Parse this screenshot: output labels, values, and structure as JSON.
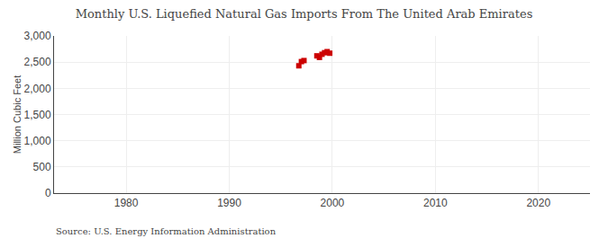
{
  "chart_data": {
    "type": "scatter",
    "title": "Monthly U.S. Liquefied Natural Gas Imports From The United Arab Emirates",
    "y_label": "Million Cubic Feet",
    "annotations": [
      "Source: U.S. Energy Information Administration"
    ],
    "x": [
      1996.75,
      1997.0,
      1997.25,
      1998.5,
      1998.75,
      1999.0,
      1999.25,
      1999.5,
      1999.75
    ],
    "values": [
      2430,
      2510,
      2530,
      2620,
      2590,
      2650,
      2680,
      2700,
      2670
    ],
    "color": "#cc0000",
    "marker": "square",
    "xlim": [
      1973,
      2025
    ],
    "xticks": [
      1980,
      1990,
      2000,
      2010,
      2020
    ],
    "ylim": [
      0,
      3000
    ],
    "yticks": [
      0,
      500,
      {
        "value": 1000,
        "label": "1,000"
      },
      {
        "value": 1500,
        "label": "1,500"
      },
      {
        "value": 2000,
        "label": "2,000"
      },
      {
        "value": 2500,
        "label": "2,500"
      },
      {
        "value": 3000,
        "label": "3,000"
      }
    ],
    "grid": true
  }
}
